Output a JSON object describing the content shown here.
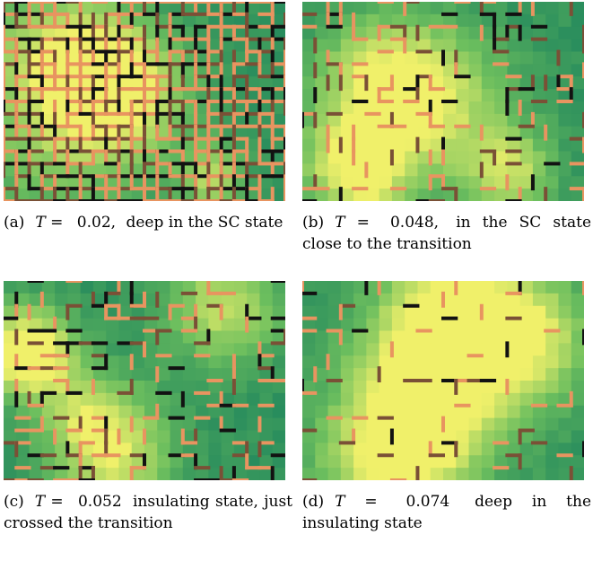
{
  "figure": {
    "panels": [
      {
        "id": "a",
        "label": "(a)",
        "temp_symbol": "T = ",
        "temp_value": "0.02,",
        "desc": "deep in the SC state",
        "bond_density": 0.85,
        "seed": 11
      },
      {
        "id": "b",
        "label": "(b)",
        "temp_symbol": "T = ",
        "temp_value": "0.048,",
        "desc": "in the SC state close to the transition",
        "bond_density": 0.22,
        "seed": 23
      },
      {
        "id": "c",
        "label": "(c)",
        "temp_symbol": "T = ",
        "temp_value": "0.052",
        "desc": "insulating state, just crossed the transition",
        "bond_density": 0.24,
        "seed": 37
      },
      {
        "id": "d",
        "label": "(d)",
        "temp_symbol": "T = ",
        "temp_value": "0.074",
        "desc": "deep in the insulating state",
        "bond_density": 0.12,
        "seed": 51
      }
    ],
    "colors": {
      "site_dark": "#0f7a5c",
      "site_mid": "#6dbf5e",
      "site_light": "#f0f06a",
      "bond_orange": "#e89460",
      "bond_brown": "#7a5036",
      "bond_black": "#121212"
    }
  }
}
